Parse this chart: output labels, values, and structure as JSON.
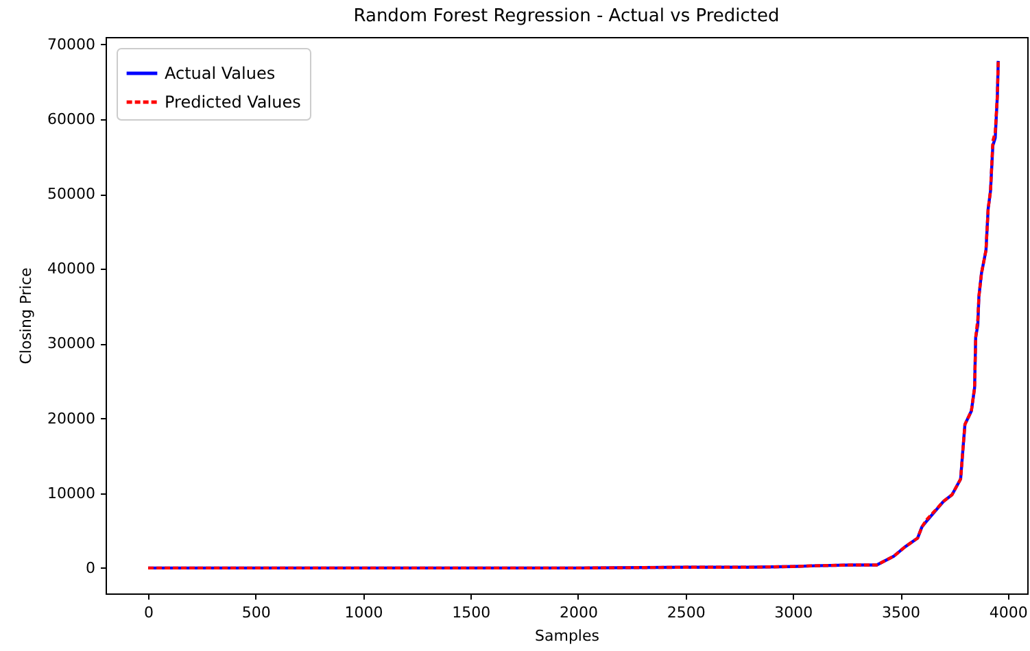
{
  "chart_data": {
    "type": "line",
    "title": "Random Forest Regression - Actual vs Predicted",
    "xlabel": "Samples",
    "ylabel": "Closing Price",
    "x": [
      0,
      1000,
      2000,
      2500,
      2800,
      3000,
      3100,
      3270,
      3390,
      3470,
      3520,
      3580,
      3600,
      3620,
      3700,
      3740,
      3780,
      3790,
      3800,
      3830,
      3845,
      3850,
      3860,
      3865,
      3877,
      3898,
      3908,
      3919,
      3930,
      3941,
      3951,
      3955
    ],
    "series": [
      {
        "name": "Actual Values",
        "color": "#0000ff",
        "line_style": "solid",
        "values": [
          0,
          0,
          0,
          100,
          100,
          200,
          300,
          400,
          400,
          1600,
          2800,
          4000,
          5500,
          6200,
          8900,
          9800,
          11900,
          15600,
          19200,
          21000,
          24100,
          30800,
          32500,
          36300,
          39400,
          42500,
          48000,
          50400,
          56500,
          57500,
          63200,
          67800
        ]
      },
      {
        "name": "Predicted Values",
        "color": "#ff0000",
        "line_style": "dashed",
        "values": [
          0,
          0,
          0,
          100,
          100,
          200,
          300,
          400,
          400,
          1600,
          2800,
          4000,
          5500,
          6400,
          8900,
          9800,
          11900,
          15600,
          19200,
          21000,
          24100,
          30800,
          33300,
          36300,
          39400,
          42500,
          48000,
          50400,
          57100,
          58300,
          63200,
          67800
        ]
      }
    ],
    "xlim": [
      -198,
      4090
    ],
    "xticks": [
      0,
      500,
      1000,
      1500,
      2000,
      2500,
      3000,
      3500,
      4000
    ],
    "ylim": [
      -3400,
      71000
    ],
    "yticks": [
      0,
      10000,
      20000,
      30000,
      40000,
      50000,
      60000,
      70000
    ],
    "legend": "top left",
    "grid": false,
    "marker": "none"
  }
}
